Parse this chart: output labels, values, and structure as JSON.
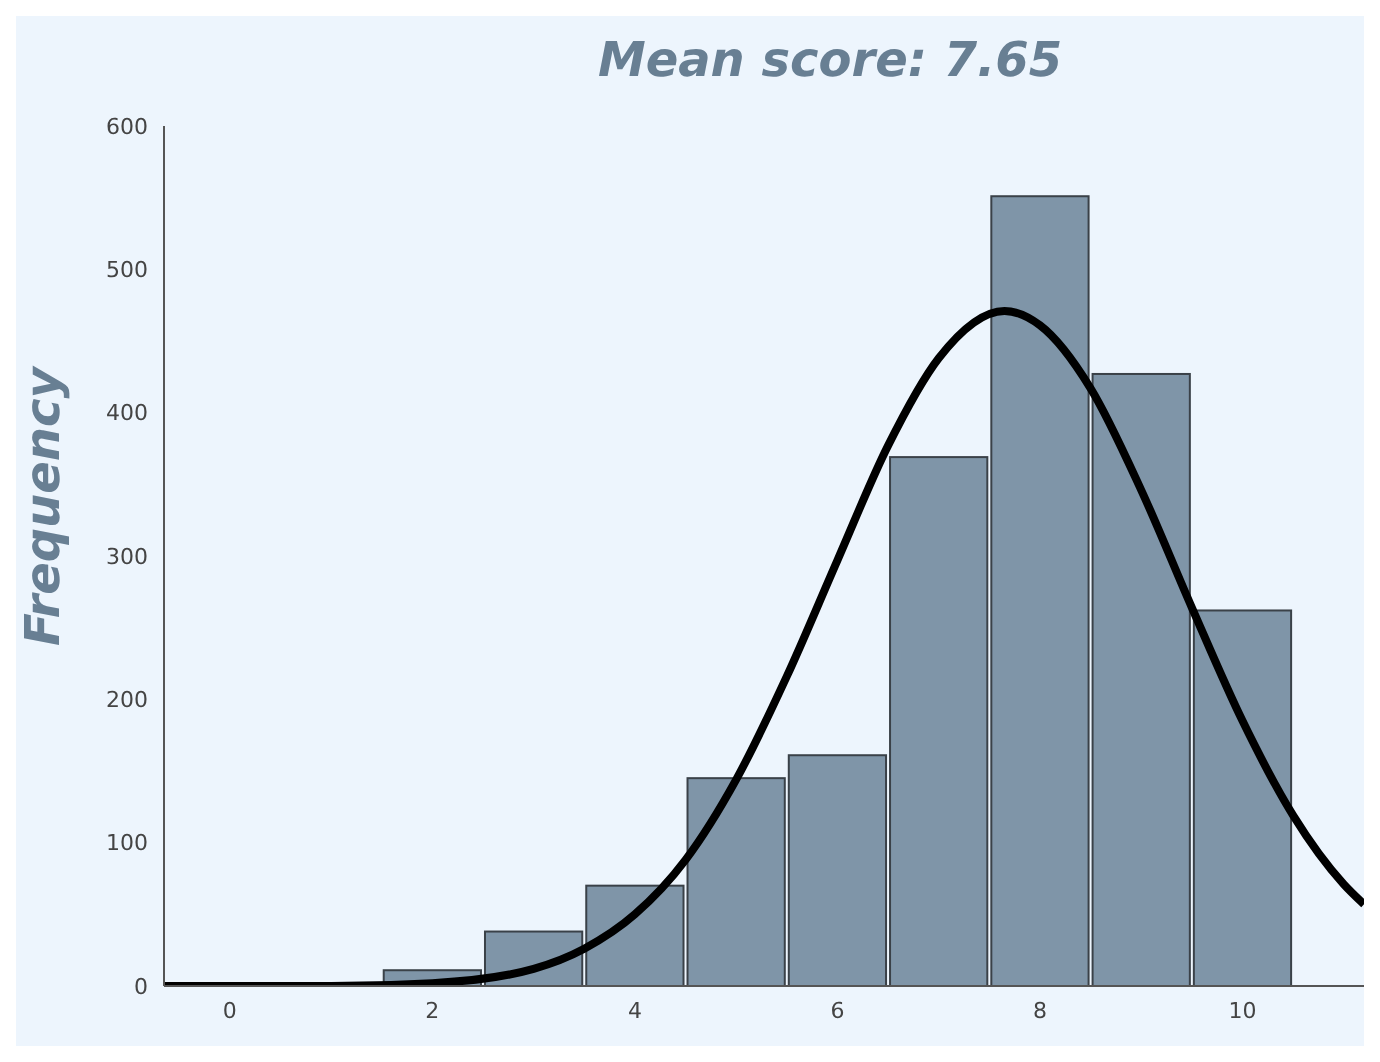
{
  "chart_data": {
    "type": "histogram",
    "title": "Mean score: 7.65",
    "ylabel": "Frequency",
    "bins": [
      1.5,
      2.5,
      3.5,
      4.5,
      5.5,
      6.5,
      7.5,
      8.5,
      9.5,
      10.5
    ],
    "values": [
      11,
      38,
      70,
      145,
      161,
      369,
      551,
      427,
      262
    ],
    "color": "#7f95a8",
    "series": [
      {
        "type": "line",
        "color": "#000000",
        "x": [
          -0.65,
          0,
          1,
          2,
          3,
          3.5,
          4,
          4.5,
          5,
          5.5,
          6,
          6.5,
          7,
          7.65,
          8,
          8.5,
          9,
          9.5,
          10,
          10.5,
          11,
          11.2
        ],
        "values": [
          0,
          0,
          0,
          2,
          12,
          26,
          50,
          88,
          144,
          216,
          297,
          377,
          438,
          471,
          461,
          417,
          346,
          264,
          185,
          119,
          71,
          57
        ]
      }
    ],
    "xlim": [
      -0.65,
      11.2
    ],
    "xticks": [
      0,
      2,
      4,
      6,
      8,
      10
    ],
    "ylim": [
      0,
      600
    ],
    "yticks": [
      0,
      100,
      200,
      300,
      400,
      500,
      600
    ],
    "grid": false
  }
}
